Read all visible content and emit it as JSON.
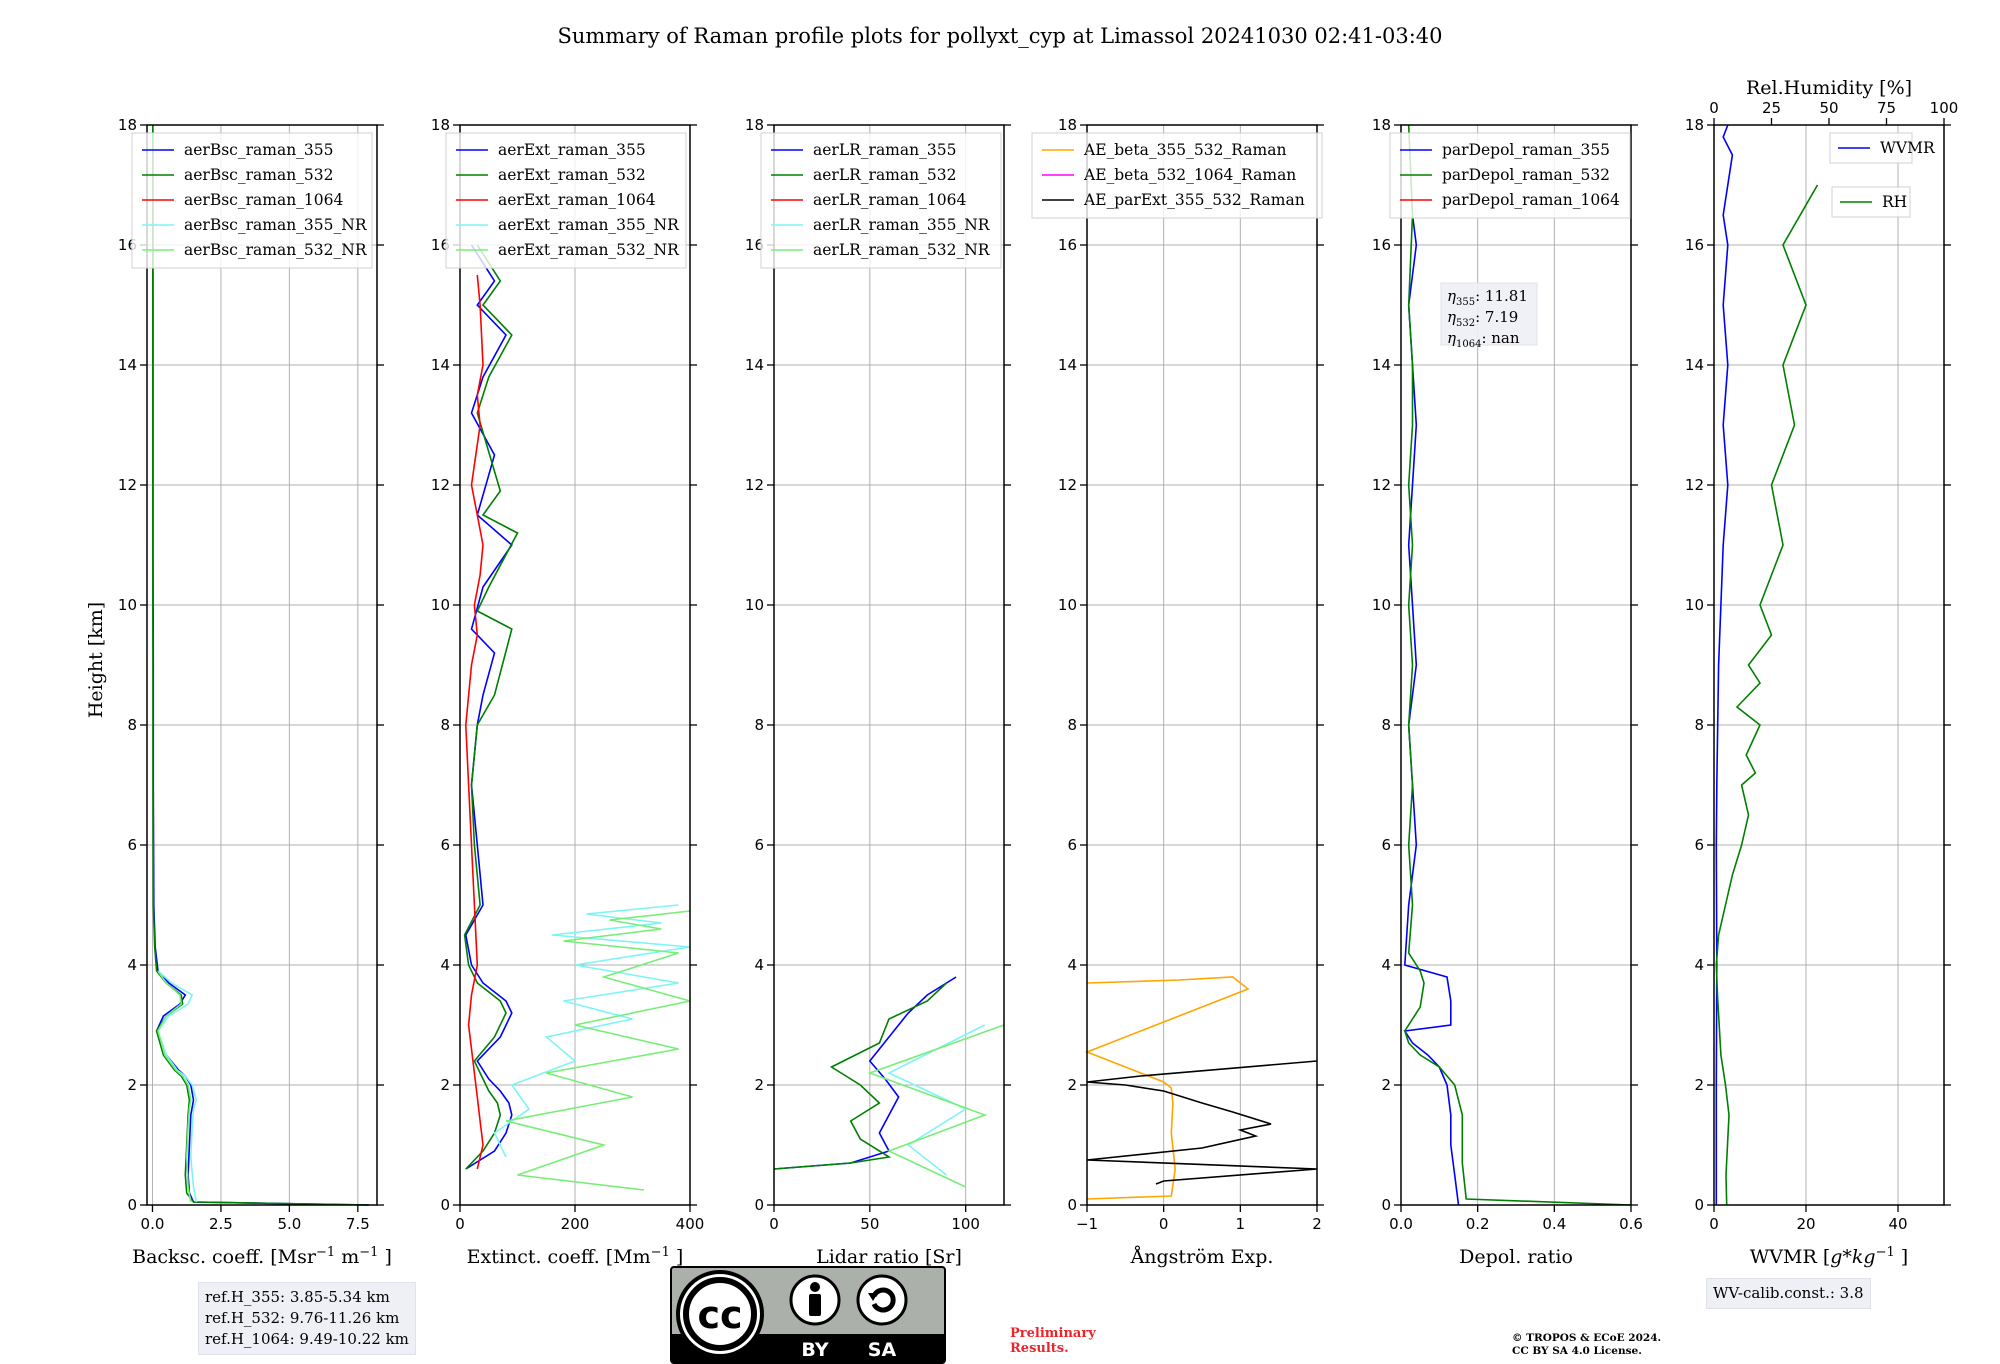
{
  "title": "Summary of Raman profile plots for pollyxt_cyp at Limassol 20241030 02:41-03:40",
  "ylabel": "Height [km]",
  "rh_axis_label": "Rel.Humidity [%]",
  "rh_ticks": [
    "0",
    "25",
    "50",
    "75",
    "100"
  ],
  "ref_heights": [
    "ref.H_355: 3.85-5.34 km",
    "ref.H_532: 9.76-11.26 km",
    "ref.H_1064: 9.49-10.22 km"
  ],
  "eta_labels": {
    "l355": ": 11.81",
    "l532": ": 7.19",
    "l1064": ": nan"
  },
  "wv_calib": "WV-calib.const.: 3.8",
  "preliminary": [
    "Preliminary",
    "Results."
  ],
  "copyright": [
    "© TROPOS & ECoE 2024.",
    "CC BY SA 4.0 License."
  ],
  "license_badge": {
    "main": "cc",
    "by": "BY",
    "sa": "SA"
  },
  "colors": {
    "c355": "#0000ff",
    "c532": "#008000",
    "c1064": "#ff0000",
    "c355nr": "#7ff4f4",
    "c532nr": "#78ee78",
    "ae_beta_355_532": "#ffa500",
    "ae_beta_532_1064": "#ff00ff",
    "ae_parext": "#000000",
    "rh": "#008000",
    "wvmr": "#0000ff"
  },
  "chart_data": [
    {
      "type": "line",
      "name": "backscatter",
      "xlabel": "Backsc. coeff. [Msr$^{-1}$ m$^{-1}$]",
      "xlim": [
        -0.2,
        8.2
      ],
      "ylim": [
        0,
        18
      ],
      "xticks": [
        "0.0",
        "2.5",
        "5.0",
        "7.5"
      ],
      "yticks": [
        "0",
        "2",
        "4",
        "6",
        "8",
        "10",
        "12",
        "14",
        "16",
        "18"
      ],
      "legend": "upper-left",
      "grid": true,
      "series": [
        {
          "name": "aerBsc_raman_355",
          "color": "#0000ff",
          "x": [
            7.9,
            1.5,
            1.35,
            1.3,
            1.35,
            1.4,
            1.5,
            1.4,
            1.2,
            0.95,
            0.5,
            0.15,
            0.4,
            1.0,
            1.2,
            0.6,
            0.2,
            0.1,
            0.05,
            0.03,
            0.03,
            0.02,
            0.02,
            0.02,
            0.01
          ],
          "y": [
            0,
            0.05,
            0.2,
            0.5,
            1.0,
            1.5,
            1.75,
            2.0,
            2.15,
            2.25,
            2.5,
            2.9,
            3.15,
            3.35,
            3.5,
            3.7,
            3.9,
            4.3,
            5.0,
            7.0,
            9.0,
            11.0,
            13.0,
            15.0,
            18.0
          ]
        },
        {
          "name": "aerBsc_raman_532",
          "color": "#008000",
          "x": [
            7.9,
            1.5,
            1.25,
            1.2,
            1.25,
            1.3,
            1.35,
            1.25,
            1.05,
            0.8,
            0.4,
            0.15,
            0.5,
            1.1,
            1.05,
            0.5,
            0.15,
            0.08,
            0.03,
            0.02,
            0.02,
            0.01,
            0.01,
            0.01,
            0.01
          ],
          "y": [
            0,
            0.05,
            0.2,
            0.5,
            1.0,
            1.5,
            1.75,
            2.0,
            2.15,
            2.25,
            2.5,
            2.9,
            3.15,
            3.35,
            3.5,
            3.7,
            3.9,
            4.3,
            5.0,
            7.0,
            9.0,
            11.0,
            13.0,
            15.0,
            18.0
          ]
        },
        {
          "name": "aerBsc_raman_1064",
          "color": "#ff0000",
          "x": [],
          "y": []
        },
        {
          "name": "aerBsc_raman_355_NR",
          "color": "#7ff4f4",
          "x": [
            1.6,
            1.5,
            1.4,
            1.45,
            1.5,
            1.6,
            1.45,
            1.2,
            0.9,
            0.5,
            0.2,
            0.6,
            1.3,
            1.45,
            0.7,
            0.2
          ],
          "y": [
            0.05,
            0.3,
            0.8,
            1.3,
            1.6,
            1.75,
            2.0,
            2.15,
            2.25,
            2.5,
            2.9,
            3.15,
            3.35,
            3.5,
            3.7,
            3.9
          ]
        },
        {
          "name": "aerBsc_raman_532_NR",
          "color": "#78ee78",
          "x": [
            1.4,
            1.3,
            1.25,
            1.3,
            1.35,
            1.4,
            1.3,
            1.1,
            0.85,
            0.45,
            0.2,
            0.5,
            1.05,
            1.0,
            0.5,
            0.2
          ],
          "y": [
            0.05,
            0.3,
            0.8,
            1.3,
            1.6,
            1.75,
            2.0,
            2.15,
            2.25,
            2.5,
            2.9,
            3.15,
            3.35,
            3.5,
            3.7,
            3.9
          ]
        }
      ]
    },
    {
      "type": "line",
      "name": "extinction",
      "xlabel": "Extinct. coeff. [Mm$^{-1}$]",
      "xlim": [
        0,
        400
      ],
      "ylim": [
        0,
        18
      ],
      "xticks": [
        "0",
        "200",
        "400"
      ],
      "yticks": [
        "0",
        "2",
        "4",
        "6",
        "8",
        "10",
        "12",
        "14",
        "16",
        "18"
      ],
      "legend": "upper-left",
      "grid": true,
      "series": [
        {
          "name": "aerExt_raman_355",
          "color": "#0000ff",
          "x": [
            10,
            60,
            80,
            90,
            85,
            70,
            50,
            30,
            70,
            90,
            80,
            40,
            20,
            10,
            40,
            30,
            20,
            30,
            40,
            60,
            20,
            40,
            90,
            30,
            60,
            20,
            40,
            80,
            30,
            60,
            20
          ],
          "y": [
            0.6,
            0.9,
            1.2,
            1.5,
            1.7,
            1.9,
            2.1,
            2.4,
            2.8,
            3.2,
            3.4,
            3.7,
            4.0,
            4.5,
            5.0,
            6.0,
            7.0,
            8.0,
            8.5,
            9.2,
            9.6,
            10.3,
            11.0,
            11.5,
            12.5,
            13.2,
            13.8,
            14.5,
            15.0,
            15.4,
            16.0
          ]
        },
        {
          "name": "aerExt_raman_532",
          "color": "#008000",
          "x": [
            10,
            40,
            60,
            70,
            65,
            50,
            40,
            25,
            60,
            80,
            70,
            30,
            15,
            8,
            35,
            25,
            20,
            30,
            60,
            90,
            30,
            50,
            100,
            40,
            70,
            30,
            50,
            90,
            40,
            70,
            30
          ],
          "y": [
            0.6,
            0.9,
            1.2,
            1.5,
            1.7,
            1.9,
            2.1,
            2.4,
            2.8,
            3.2,
            3.4,
            3.7,
            4.0,
            4.5,
            5.0,
            6.0,
            7.0,
            8.0,
            8.5,
            9.6,
            9.9,
            10.3,
            11.2,
            11.5,
            11.9,
            13.2,
            13.8,
            14.5,
            15.0,
            15.4,
            16.0
          ]
        },
        {
          "name": "aerExt_raman_1064",
          "color": "#ff0000",
          "x": [
            30,
            40,
            35,
            30,
            25,
            20,
            15,
            20,
            30,
            25,
            20,
            15,
            10,
            20,
            30,
            25,
            35,
            40,
            30,
            20,
            35,
            30,
            40,
            35,
            30
          ],
          "y": [
            0.6,
            1.0,
            1.4,
            1.8,
            2.2,
            2.6,
            3.0,
            3.5,
            4.0,
            5.0,
            6.0,
            7.0,
            8.0,
            9.0,
            9.5,
            10.0,
            10.5,
            11.0,
            11.5,
            12.0,
            13.0,
            13.5,
            14.0,
            15.0,
            15.5
          ]
        },
        {
          "name": "aerExt_raman_355_NR",
          "color": "#7ff4f4",
          "x": [
            80,
            60,
            120,
            90,
            200,
            150,
            300,
            180,
            380,
            200,
            400,
            160,
            350,
            220,
            380
          ],
          "y": [
            0.8,
            1.2,
            1.6,
            2.0,
            2.4,
            2.8,
            3.1,
            3.4,
            3.7,
            4.0,
            4.3,
            4.5,
            4.7,
            4.85,
            5.0
          ]
        },
        {
          "name": "aerExt_raman_532_NR",
          "color": "#78ee78",
          "x": [
            320,
            100,
            250,
            80,
            300,
            150,
            380,
            200,
            400,
            250,
            380,
            180,
            350,
            260,
            400
          ],
          "y": [
            0.25,
            0.5,
            1.0,
            1.4,
            1.8,
            2.2,
            2.6,
            3.0,
            3.4,
            3.8,
            4.2,
            4.4,
            4.6,
            4.75,
            4.9
          ]
        }
      ]
    },
    {
      "type": "line",
      "name": "lidar-ratio",
      "xlabel": "Lidar ratio [Sr]",
      "xlim": [
        0,
        120
      ],
      "ylim": [
        0,
        18
      ],
      "xticks": [
        "0",
        "50",
        "100"
      ],
      "yticks": [
        "0",
        "2",
        "4",
        "6",
        "8",
        "10",
        "12",
        "14",
        "16",
        "18"
      ],
      "legend": "upper-left",
      "grid": true,
      "series": [
        {
          "name": "aerLR_raman_355",
          "color": "#0000ff",
          "x": [
            0,
            40,
            60,
            55,
            60,
            65,
            58,
            50,
            60,
            70,
            80,
            95
          ],
          "y": [
            0.6,
            0.7,
            0.9,
            1.2,
            1.5,
            1.8,
            2.1,
            2.4,
            2.8,
            3.2,
            3.5,
            3.8
          ]
        },
        {
          "name": "aerLR_raman_532",
          "color": "#008000",
          "x": [
            0,
            40,
            60,
            45,
            40,
            55,
            45,
            30,
            55,
            60,
            80,
            90
          ],
          "y": [
            0.6,
            0.7,
            0.8,
            1.1,
            1.4,
            1.7,
            2.0,
            2.3,
            2.7,
            3.1,
            3.4,
            3.7
          ]
        },
        {
          "name": "aerLR_raman_1064",
          "color": "#ff0000",
          "x": [],
          "y": []
        },
        {
          "name": "aerLR_raman_355_NR",
          "color": "#7ff4f4",
          "x": [
            90,
            70,
            100,
            60,
            110
          ],
          "y": [
            0.5,
            1.0,
            1.6,
            2.2,
            3.0
          ]
        },
        {
          "name": "aerLR_raman_532_NR",
          "color": "#78ee78",
          "x": [
            100,
            60,
            110,
            50,
            120
          ],
          "y": [
            0.3,
            0.9,
            1.5,
            2.2,
            3.0
          ]
        }
      ]
    },
    {
      "type": "line",
      "name": "angstrom",
      "xlabel": "Ångström Exp.",
      "xlim": [
        -1,
        2
      ],
      "ylim": [
        0,
        18
      ],
      "xticks": [
        "−1",
        "0",
        "1",
        "2"
      ],
      "yticks": [
        "0",
        "2",
        "4",
        "6",
        "8",
        "10",
        "12",
        "14",
        "16",
        "18"
      ],
      "legend": "upper-left",
      "grid": true,
      "series": [
        {
          "name": "AE_beta_355_532_Raman",
          "color": "#ffa500",
          "x": [
            -1,
            0.1,
            0.15,
            0.1,
            0.12,
            0.1,
            0.0,
            -0.3,
            -0.6,
            -0.8,
            -1,
            0.5,
            1.1,
            0.9,
            0.2,
            -1
          ],
          "y": [
            0.1,
            0.15,
            0.6,
            1.2,
            1.7,
            1.95,
            2.05,
            2.2,
            2.35,
            2.45,
            2.55,
            3.3,
            3.6,
            3.8,
            3.75,
            3.7
          ]
        },
        {
          "name": "AE_beta_532_1064_Raman",
          "color": "#ff00ff",
          "x": [],
          "y": []
        },
        {
          "name": "AE_parExt_355_532_Raman",
          "color": "#000000",
          "x": [
            -0.1,
            0.0,
            2,
            -1,
            0.5,
            1.2,
            1.0,
            1.4,
            0.9,
            0.5,
            0.0,
            -0.5,
            -1,
            -0.3,
            2
          ],
          "y": [
            0.35,
            0.4,
            0.6,
            0.75,
            0.95,
            1.15,
            1.25,
            1.35,
            1.55,
            1.7,
            1.9,
            2.0,
            2.05,
            2.15,
            2.4
          ]
        }
      ]
    },
    {
      "type": "line",
      "name": "depolarization",
      "xlabel": "Depol. ratio",
      "xlim": [
        0,
        0.6
      ],
      "ylim": [
        0,
        18
      ],
      "xticks": [
        "0.0",
        "0.2",
        "0.4",
        "0.6"
      ],
      "yticks": [
        "0",
        "2",
        "4",
        "6",
        "8",
        "10",
        "12",
        "14",
        "16",
        "18"
      ],
      "legend": "upper-left",
      "grid": true,
      "series": [
        {
          "name": "parDepol_raman_355",
          "color": "#0000ff",
          "x": [
            0.15,
            0.14,
            0.13,
            0.13,
            0.12,
            0.1,
            0.07,
            0.03,
            0.01,
            0.13,
            0.13,
            0.12,
            0.01,
            0.02,
            0.04,
            0.03,
            0.02,
            0.04,
            0.03,
            0.02,
            0.03,
            0.04,
            0.03,
            0.02,
            0.03,
            0.04,
            0.03
          ],
          "y": [
            0.0,
            0.5,
            1.0,
            1.5,
            2.0,
            2.3,
            2.5,
            2.7,
            2.9,
            3.0,
            3.4,
            3.8,
            4.0,
            5.0,
            6.0,
            7.0,
            8.0,
            9.0,
            10.0,
            11.0,
            12.0,
            13.0,
            14.0,
            15.0,
            15.5,
            16.0,
            16.5
          ]
        },
        {
          "name": "parDepol_raman_532",
          "color": "#008000",
          "x": [
            0.6,
            0.17,
            0.16,
            0.16,
            0.14,
            0.1,
            0.05,
            0.02,
            0.01,
            0.05,
            0.06,
            0.05,
            0.02,
            0.03,
            0.02,
            0.03,
            0.02,
            0.03,
            0.02,
            0.03,
            0.02,
            0.03,
            0.03,
            0.02,
            0.03,
            0.02
          ],
          "y": [
            0.0,
            0.1,
            0.7,
            1.5,
            2.0,
            2.3,
            2.5,
            2.7,
            2.9,
            3.3,
            3.7,
            3.9,
            4.2,
            5.0,
            6.0,
            7.0,
            8.0,
            9.0,
            10.0,
            11.0,
            12.0,
            13.0,
            14.0,
            15.0,
            16.5,
            18.0
          ]
        },
        {
          "name": "parDepol_raman_1064",
          "color": "#ff0000",
          "x": [],
          "y": []
        }
      ]
    },
    {
      "type": "line",
      "name": "water-vapor",
      "xlabel": "WVMR [$g*kg^{-1}$]",
      "xlim": [
        0,
        50
      ],
      "ylim": [
        0,
        18
      ],
      "xticks": [
        "0",
        "20",
        "40"
      ],
      "yticks": [
        "0",
        "2",
        "4",
        "6",
        "8",
        "10",
        "12",
        "14",
        "16",
        "18"
      ],
      "rh_xlim": [
        0,
        100
      ],
      "legend": "upper-right",
      "grid": true,
      "series": [
        {
          "name": "WVMR",
          "color": "#0000ff",
          "x": [
            0.5,
            0.5,
            0.6,
            0.5,
            0.6,
            0.8,
            1.0,
            1.5,
            2,
            3,
            2,
            3,
            2,
            3,
            2,
            3,
            4,
            2,
            3
          ],
          "y": [
            0,
            2,
            4,
            6,
            7,
            8,
            9,
            10,
            11,
            12,
            13,
            14,
            15,
            16,
            16.5,
            17,
            17.5,
            17.8,
            18
          ]
        },
        {
          "name": "RH",
          "color": "#008000",
          "x": [
            5.5,
            5.2,
            6.5,
            5,
            3,
            1.5,
            1,
            2,
            5,
            8,
            12,
            15,
            12,
            18,
            14,
            20,
            10,
            20,
            15,
            25,
            20,
            30,
            25,
            35,
            30,
            40,
            30,
            45
          ],
          "y": [
            0,
            0.5,
            1.5,
            2.0,
            2.5,
            3.5,
            4.0,
            4.5,
            5.0,
            5.5,
            6.0,
            6.5,
            7.0,
            7.2,
            7.5,
            8.0,
            8.3,
            8.7,
            9.0,
            9.5,
            10.0,
            11.0,
            12.0,
            13.0,
            14.0,
            15.0,
            16.0,
            17.0
          ]
        }
      ]
    }
  ]
}
